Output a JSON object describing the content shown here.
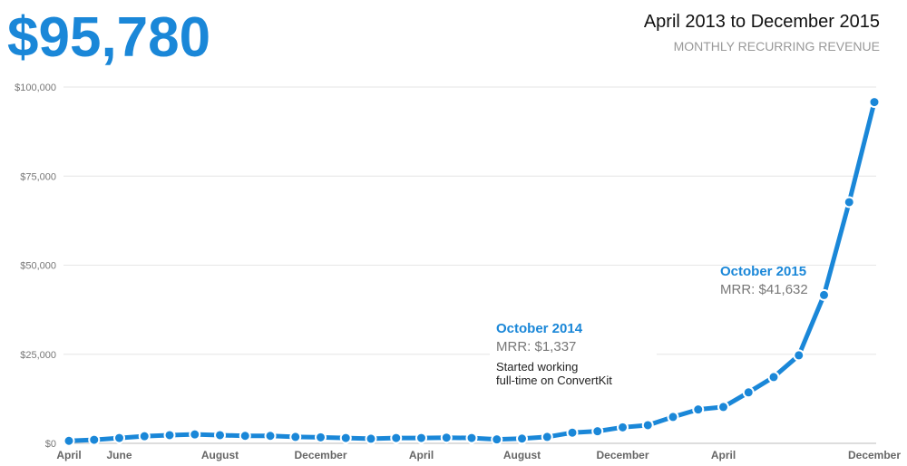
{
  "chart_data": {
    "type": "line",
    "headline": "$95,780",
    "title": "April 2013 to December 2015",
    "subtitle": "MONTHLY RECURRING REVENUE",
    "categories": [
      "April",
      null,
      "June",
      null,
      null,
      null,
      "August",
      null,
      null,
      null,
      "December",
      null,
      null,
      null,
      "April",
      null,
      null,
      null,
      "August",
      null,
      null,
      null,
      "December",
      null,
      null,
      null,
      "April",
      null,
      null,
      null,
      null,
      null,
      "December"
    ],
    "values": [
      700,
      1000,
      1500,
      2000,
      2300,
      2500,
      2300,
      2100,
      2100,
      1800,
      1700,
      1500,
      1300,
      1500,
      1500,
      1600,
      1500,
      1100,
      1337,
      1800,
      3000,
      3400,
      4500,
      5100,
      7400,
      9500,
      10200,
      14300,
      18600,
      24700,
      41632,
      67700,
      95780
    ],
    "color": "#1a87d8",
    "ylim": [
      0,
      100000
    ],
    "yticks": [
      {
        "value": 0,
        "label": "$0"
      },
      {
        "value": 25000,
        "label": "$25,000"
      },
      {
        "value": 50000,
        "label": "$50,000"
      },
      {
        "value": 75000,
        "label": "$75,000"
      },
      {
        "value": 100000,
        "label": "$100,000"
      }
    ],
    "grid": true,
    "annotations": [
      {
        "title": "October 2014",
        "text": "MRR: $1,337",
        "note": [
          "Started working",
          "full-time on ConvertKit"
        ]
      },
      {
        "title": "October 2015",
        "text": "MRR: $41,632"
      }
    ]
  }
}
